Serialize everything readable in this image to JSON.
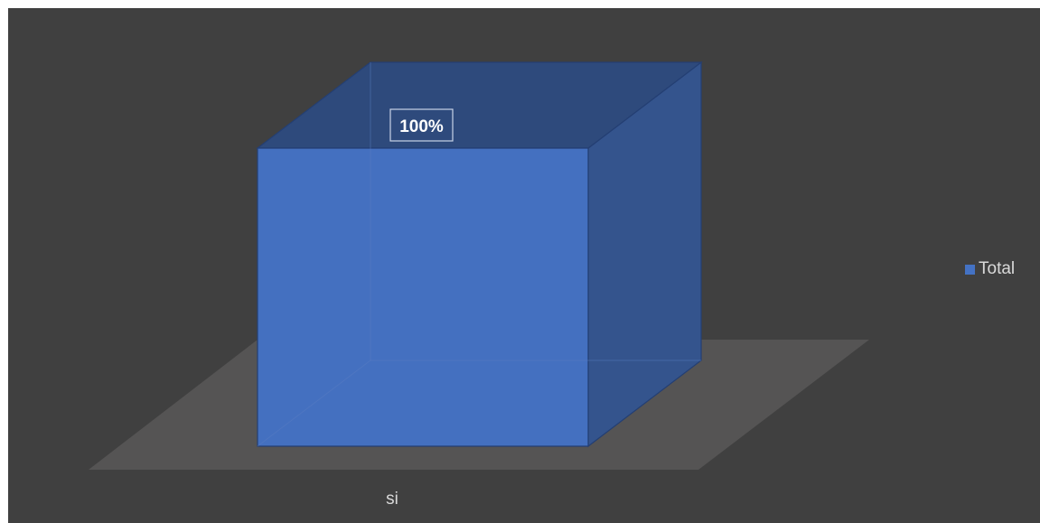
{
  "chart_data": {
    "type": "bar",
    "style": "3d-box",
    "categories": [
      "si"
    ],
    "series": [
      {
        "name": "Total",
        "values": [
          1.0
        ],
        "color": "#4472c4"
      }
    ],
    "data_labels": [
      "100%"
    ],
    "legend": {
      "position": "right"
    },
    "ylim": [
      0,
      1
    ],
    "grid": false,
    "background_color": "#404040"
  }
}
